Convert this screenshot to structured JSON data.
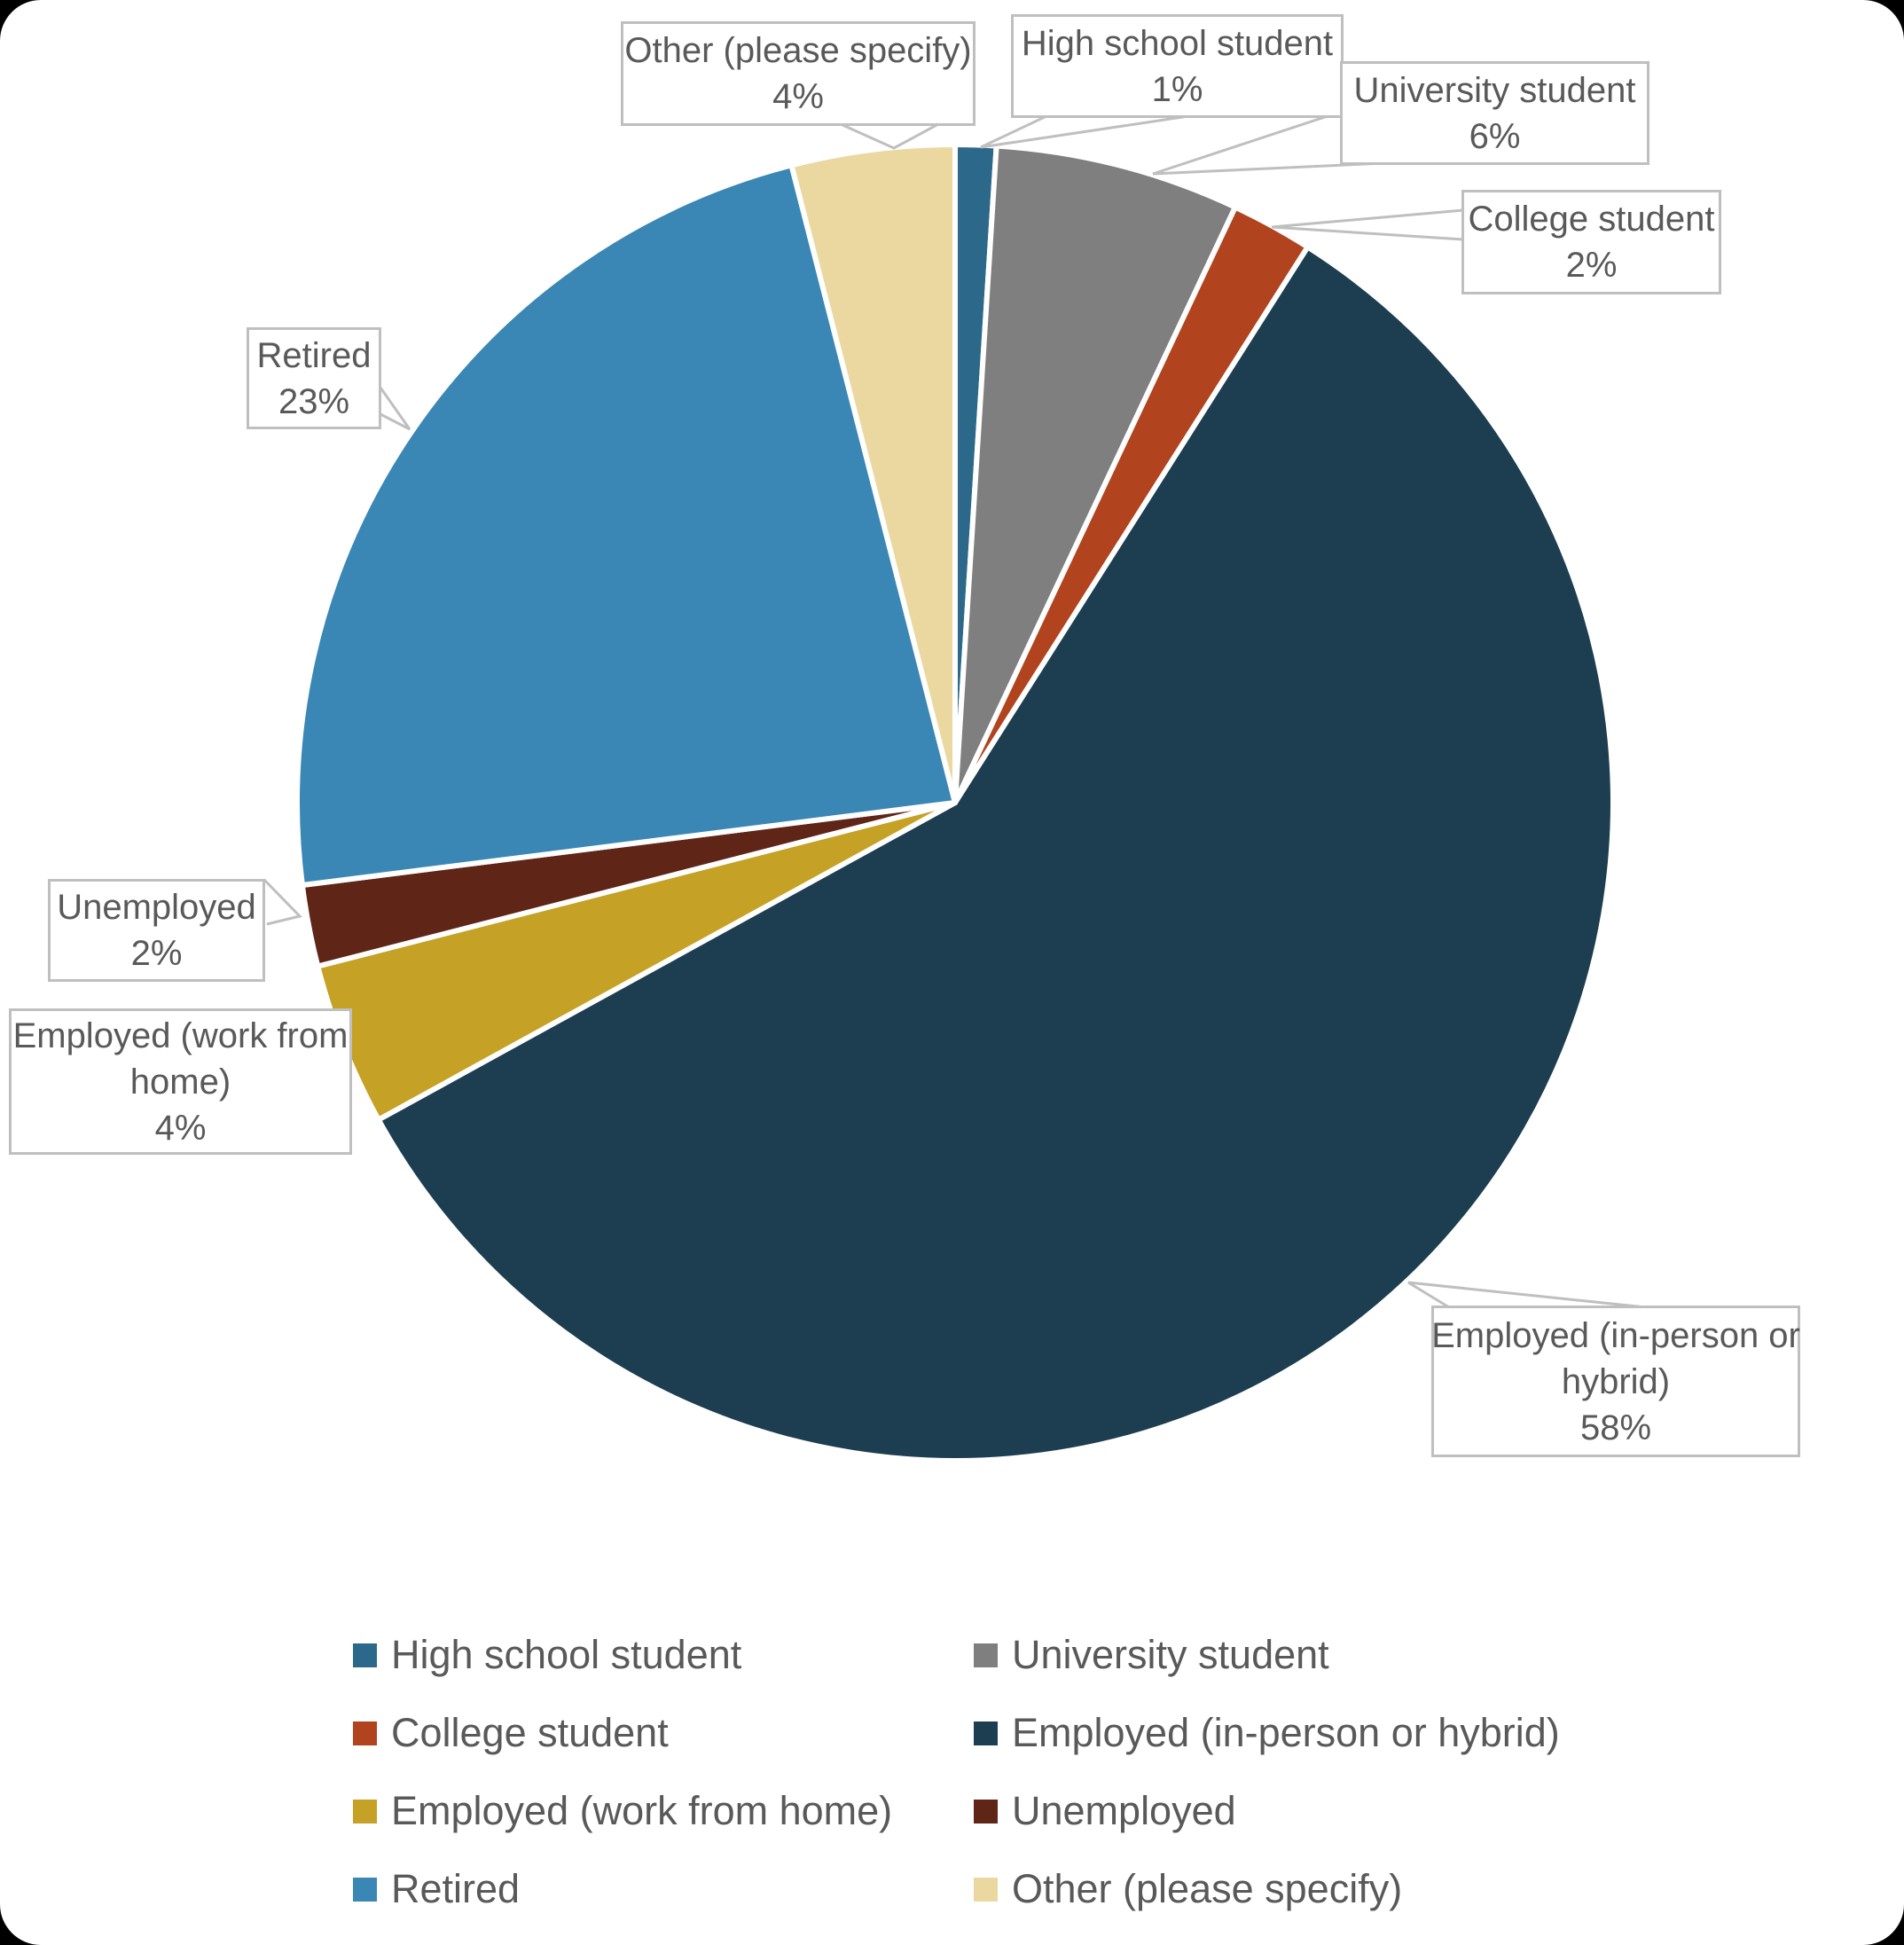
{
  "chart_data": {
    "type": "pie",
    "title": "",
    "unit": "percent",
    "start_angle_deg": 0,
    "direction": "clockwise",
    "legend_position": "bottom",
    "data_label_format": "category name + percentage in white callout boxes with gray leader lines",
    "categories": [
      "High school student",
      "University student",
      "College student",
      "Employed (in-person or hybrid)",
      "Employed (work from home)",
      "Unemployed",
      "Retired",
      "Other (please specify)"
    ],
    "values": [
      1,
      6,
      2,
      58,
      4,
      2,
      23,
      4
    ],
    "series": [
      {
        "name": "High school student",
        "value": 1,
        "color": "#2C688A"
      },
      {
        "name": "University student",
        "value": 6,
        "color": "#7F7F7F"
      },
      {
        "name": "College student",
        "value": 2,
        "color": "#B1441F"
      },
      {
        "name": "Employed (in-person or hybrid)",
        "value": 58,
        "color": "#1D3D51"
      },
      {
        "name": "Employed (work from home)",
        "value": 4,
        "color": "#C5A126"
      },
      {
        "name": "Unemployed",
        "value": 2,
        "color": "#5F2517"
      },
      {
        "name": "Retired",
        "value": 23,
        "color": "#3A87B5"
      },
      {
        "name": "Other (please specify)",
        "value": 4,
        "color": "#EBD8A1"
      }
    ]
  },
  "callouts": [
    {
      "id": "other",
      "lines": [
        "Other (please specify)",
        "4%"
      ]
    },
    {
      "id": "high-school",
      "lines": [
        "High school student",
        "1%"
      ]
    },
    {
      "id": "university",
      "lines": [
        "University student",
        "6%"
      ]
    },
    {
      "id": "college",
      "lines": [
        "College student",
        "2%"
      ]
    },
    {
      "id": "retired",
      "lines": [
        "Retired",
        "23%"
      ]
    },
    {
      "id": "unemployed",
      "lines": [
        "Unemployed",
        "2%"
      ]
    },
    {
      "id": "wfh",
      "lines": [
        "Employed (work from",
        "home)",
        "4%"
      ]
    },
    {
      "id": "in-person",
      "lines": [
        "Employed (in-person or",
        "hybrid)",
        "58%"
      ]
    }
  ],
  "legend": {
    "items": [
      {
        "label": "High school student"
      },
      {
        "label": "University student"
      },
      {
        "label": "College student"
      },
      {
        "label": "Employed (in-person or hybrid)"
      },
      {
        "label": "Employed (work from home)"
      },
      {
        "label": "Unemployed"
      },
      {
        "label": "Retired"
      },
      {
        "label": "Other (please specify)"
      }
    ]
  },
  "style": {
    "label_text_color": "#595959",
    "callout_border_color": "#BFBFBF",
    "leader_line_color": "#BFBFBF",
    "slice_separator_color": "#FFFFFF",
    "background": "#FFFFFF"
  }
}
